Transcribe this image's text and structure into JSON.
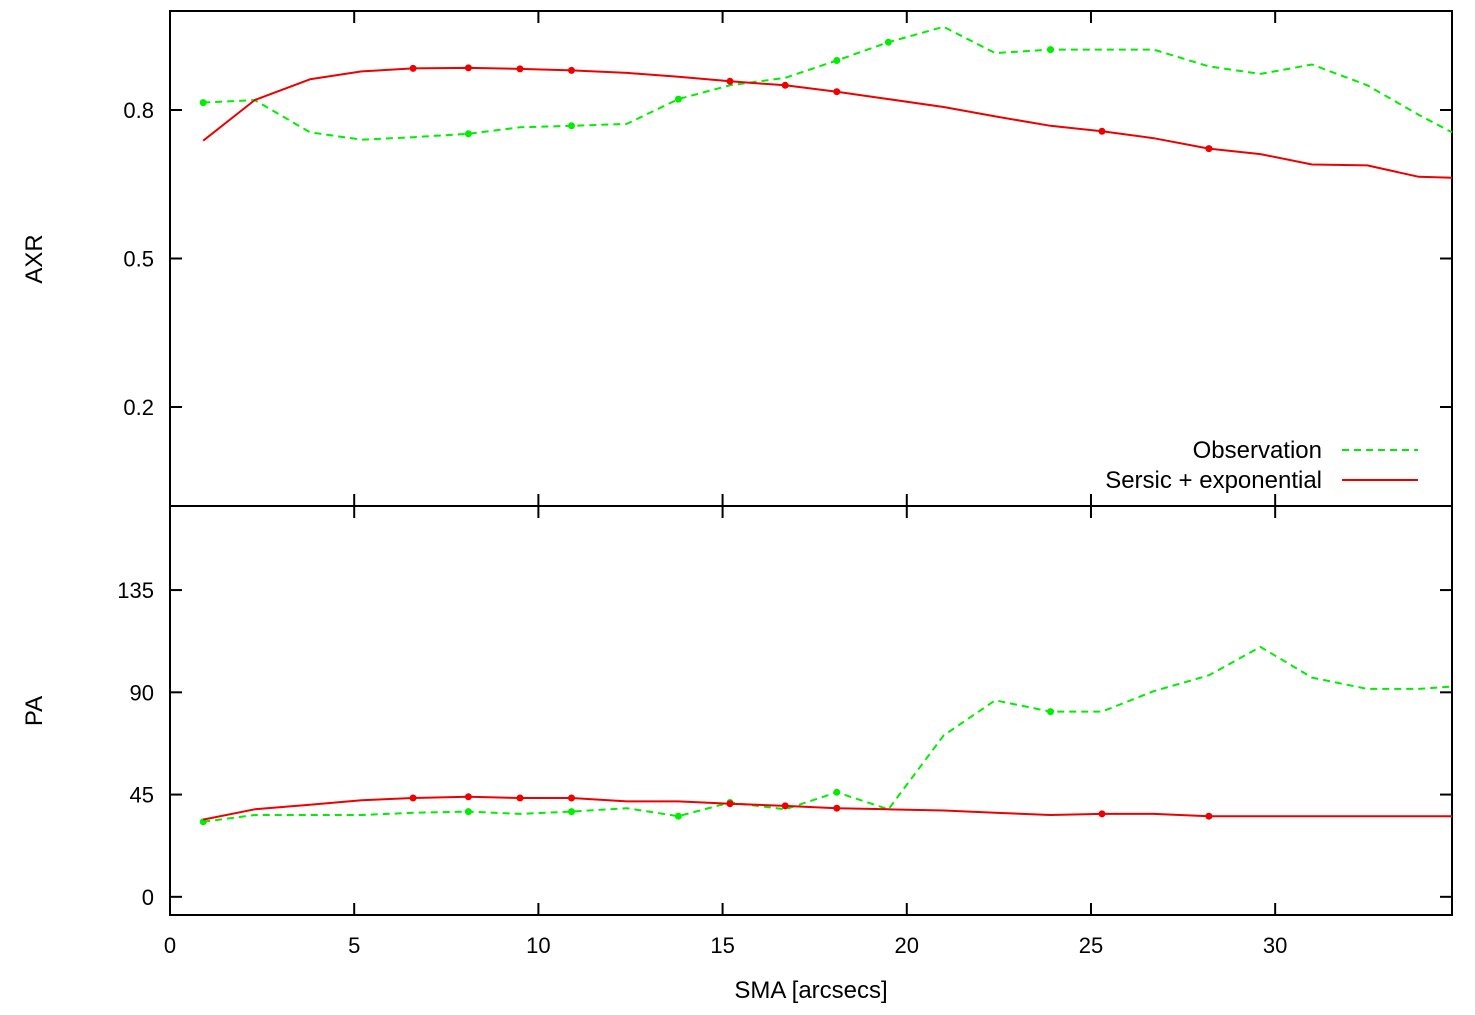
{
  "chart_data": [
    {
      "type": "line",
      "panel": "top",
      "ylabel": "AXR",
      "xlim": [
        0,
        34.8
      ],
      "ylim": [
        0,
        1.0
      ],
      "yticks": [
        0.2,
        0.5,
        0.8
      ],
      "grid": false,
      "legend": "bottom-right",
      "series": [
        {
          "name": "Observation",
          "color": "#00ee00",
          "style": "dashed",
          "x": [
            0.9,
            2.3,
            3.8,
            5.2,
            6.6,
            8.1,
            9.5,
            10.9,
            12.4,
            13.8,
            15.2,
            16.7,
            18.1,
            19.5,
            21.0,
            22.4,
            23.9,
            25.3,
            26.7,
            28.2,
            29.6,
            31.0,
            32.5,
            33.9,
            34.8
          ],
          "y": [
            0.815,
            0.82,
            0.755,
            0.74,
            0.745,
            0.752,
            0.765,
            0.768,
            0.772,
            0.822,
            0.85,
            0.865,
            0.9,
            0.937,
            0.968,
            0.915,
            0.922,
            0.922,
            0.922,
            0.888,
            0.873,
            0.892,
            0.85,
            0.79,
            0.755
          ],
          "markers_x": [
            0.9,
            8.1,
            10.9,
            13.8,
            18.1,
            19.5,
            23.9
          ],
          "markers_y": [
            0.815,
            0.752,
            0.768,
            0.822,
            0.9,
            0.937,
            0.922
          ]
        },
        {
          "name": "Sersic + exponential",
          "color": "#ee0000",
          "style": "solid",
          "x": [
            0.9,
            2.3,
            3.8,
            5.2,
            6.6,
            8.1,
            9.5,
            10.9,
            12.4,
            13.8,
            15.2,
            16.7,
            18.1,
            19.5,
            21.0,
            22.4,
            23.9,
            25.3,
            26.7,
            28.2,
            29.6,
            31.0,
            32.5,
            33.9,
            34.8
          ],
          "y": [
            0.738,
            0.82,
            0.862,
            0.878,
            0.884,
            0.885,
            0.883,
            0.88,
            0.875,
            0.867,
            0.858,
            0.85,
            0.837,
            0.822,
            0.806,
            0.787,
            0.768,
            0.757,
            0.743,
            0.722,
            0.711,
            0.69,
            0.688,
            0.665,
            0.663
          ],
          "markers_x": [
            6.6,
            8.1,
            9.5,
            10.9,
            15.2,
            16.7,
            18.1,
            25.3,
            28.2
          ],
          "markers_y": [
            0.884,
            0.885,
            0.883,
            0.88,
            0.858,
            0.85,
            0.837,
            0.757,
            0.722
          ]
        }
      ]
    },
    {
      "type": "line",
      "panel": "bottom",
      "ylabel": "PA",
      "xlabel": "SMA [arcsecs]",
      "xlim": [
        0,
        34.8
      ],
      "ylim": [
        -8,
        172
      ],
      "xticks": [
        0,
        5,
        10,
        15,
        20,
        25,
        30
      ],
      "yticks": [
        0,
        45,
        90,
        135
      ],
      "grid": false,
      "series": [
        {
          "name": "Observation",
          "color": "#00ee00",
          "style": "dashed",
          "x": [
            0.9,
            2.3,
            3.8,
            5.2,
            6.6,
            8.1,
            9.5,
            10.9,
            12.4,
            13.8,
            15.2,
            16.7,
            18.1,
            19.5,
            21.0,
            22.4,
            23.9,
            25.3,
            26.7,
            28.2,
            29.6,
            31.0,
            32.5,
            33.9,
            34.8
          ],
          "y": [
            33,
            36,
            36,
            36,
            37,
            37.5,
            36.5,
            37.5,
            39,
            35.5,
            41.5,
            38.5,
            46,
            38.5,
            71,
            86.5,
            81.5,
            81.5,
            90.5,
            97.5,
            110,
            96.5,
            91.5,
            91.5,
            92.5
          ],
          "markers_x": [
            0.9,
            8.1,
            10.9,
            13.8,
            15.2,
            18.1,
            23.9
          ],
          "markers_y": [
            33,
            37.5,
            37.5,
            35.5,
            41.5,
            46,
            81.5
          ]
        },
        {
          "name": "Sersic + exponential",
          "color": "#ee0000",
          "style": "solid",
          "x": [
            0.9,
            2.3,
            3.8,
            5.2,
            6.6,
            8.1,
            9.5,
            10.9,
            12.4,
            13.8,
            15.2,
            16.7,
            18.1,
            19.5,
            21.0,
            22.4,
            23.9,
            25.3,
            26.7,
            28.2,
            29.6,
            31.0,
            32.5,
            33.9,
            34.8
          ],
          "y": [
            34,
            38.5,
            40.5,
            42.5,
            43.5,
            44,
            43.5,
            43.5,
            42,
            42,
            41,
            40,
            39,
            38.5,
            38,
            37,
            36,
            36.5,
            36.5,
            35.5,
            35.5,
            35.5,
            35.5,
            35.5,
            35.5
          ],
          "markers_x": [
            6.6,
            8.1,
            9.5,
            10.9,
            15.2,
            16.7,
            18.1,
            25.3,
            28.2
          ],
          "markers_y": [
            43.5,
            44,
            43.5,
            43.5,
            41,
            40,
            39,
            36.5,
            35.5
          ]
        }
      ]
    }
  ]
}
